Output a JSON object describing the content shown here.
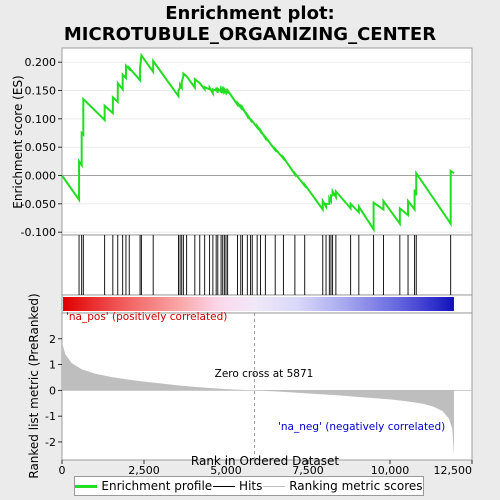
{
  "chart_data": {
    "type": "line",
    "title_lines": [
      "Enrichment plot:",
      "MICROTUBULE_ORGANIZING_CENTER"
    ],
    "xlabel": "Rank in Ordered Dataset",
    "ylabel_top": "Enrichment score (ES)",
    "ylabel_bottom": "Ranked list metric (PreRanked)",
    "xlim": [
      0,
      12500
    ],
    "x_ticks": [
      0,
      2500,
      5000,
      7500,
      10000,
      12500
    ],
    "x_tick_labels": [
      "0",
      "2,500",
      "5,000",
      "7,500",
      "10,000",
      "12,500"
    ],
    "es_ylim": [
      -0.105,
      0.225
    ],
    "es_ticks": [
      -0.1,
      -0.05,
      0.0,
      0.05,
      0.1,
      0.15,
      0.2
    ],
    "es_tick_labels": [
      "-0.100",
      "-0.050",
      "0.000",
      "0.050",
      "0.100",
      "0.150",
      "0.200"
    ],
    "metric_ylim": [
      -2.7,
      3.0
    ],
    "metric_ticks": [
      -2,
      -1,
      0,
      1,
      2
    ],
    "metric_tick_labels": [
      "-2",
      "-1",
      "0",
      "1",
      "2"
    ],
    "n_genes": 11950,
    "zero_cross": 5871,
    "zero_cross_label": "Zero cross at 5871",
    "pos_label": "'na_pos' (positively correlated)",
    "neg_label": "'na_neg' (negatively correlated)",
    "hits": [
      520,
      600,
      650,
      1300,
      1550,
      1700,
      1850,
      1950,
      2050,
      2380,
      2420,
      2780,
      3550,
      3600,
      3650,
      3700,
      3800,
      4050,
      4200,
      4350,
      4500,
      4600,
      4700,
      4750,
      4850,
      4900,
      4950,
      5000,
      5050,
      5350,
      5450,
      5500,
      5650,
      5750,
      5800,
      5950,
      6050,
      6200,
      6500,
      6750,
      7100,
      7400,
      7950,
      8050,
      8150,
      8200,
      8250,
      8350,
      8800,
      9050,
      9500,
      9800,
      10300,
      10550,
      10750,
      10800,
      11850
    ],
    "es_profile": {
      "x": [
        0,
        520,
        520,
        600,
        600,
        650,
        650,
        1300,
        1300,
        1550,
        1550,
        1700,
        1700,
        1850,
        1850,
        1950,
        1950,
        2050,
        2050,
        2380,
        2380,
        2420,
        2420,
        2780,
        2780,
        3550,
        3550,
        3600,
        3600,
        3650,
        3650,
        3700,
        3700,
        3800,
        3800,
        4050,
        4050,
        4200,
        4200,
        4350,
        4350,
        4500,
        4500,
        4600,
        4600,
        4700,
        4700,
        4750,
        4750,
        4850,
        4850,
        4900,
        4900,
        4950,
        4950,
        5000,
        5000,
        5050,
        5050,
        5350,
        5350,
        5450,
        5450,
        5500,
        5500,
        5650,
        5650,
        5750,
        5750,
        5800,
        5800,
        5950,
        5950,
        6050,
        6050,
        6200,
        6200,
        6500,
        6500,
        6750,
        6750,
        7100,
        7100,
        7400,
        7400,
        7950,
        7950,
        8050,
        8050,
        8150,
        8150,
        8200,
        8200,
        8250,
        8250,
        8350,
        8350,
        8800,
        8800,
        9050,
        9050,
        9500,
        9500,
        9800,
        9800,
        10300,
        10300,
        10550,
        10550,
        10750,
        10750,
        10800,
        10800,
        11850,
        11850,
        11950
      ],
      "y": [
        0.0,
        -0.043,
        0.025,
        0.018,
        0.075,
        0.072,
        0.135,
        0.098,
        0.123,
        0.11,
        0.138,
        0.13,
        0.163,
        0.152,
        0.178,
        0.172,
        0.194,
        0.188,
        0.19,
        0.168,
        0.19,
        0.212,
        0.212,
        0.183,
        0.202,
        0.14,
        0.15,
        0.155,
        0.16,
        0.155,
        0.165,
        0.175,
        0.18,
        0.175,
        0.175,
        0.155,
        0.17,
        0.163,
        0.163,
        0.152,
        0.156,
        0.152,
        0.155,
        0.145,
        0.152,
        0.15,
        0.155,
        0.146,
        0.153,
        0.148,
        0.153,
        0.148,
        0.153,
        0.148,
        0.152,
        0.147,
        0.152,
        0.145,
        0.15,
        0.125,
        0.128,
        0.12,
        0.122,
        0.118,
        0.12,
        0.105,
        0.107,
        0.098,
        0.1,
        0.094,
        0.096,
        0.085,
        0.087,
        0.078,
        0.08,
        0.066,
        0.068,
        0.045,
        0.047,
        0.03,
        0.032,
        0.002,
        0.004,
        -0.018,
        -0.016,
        -0.06,
        -0.045,
        -0.055,
        -0.05,
        -0.05,
        -0.04,
        -0.045,
        -0.035,
        -0.035,
        -0.028,
        -0.038,
        -0.028,
        -0.058,
        -0.05,
        -0.065,
        -0.055,
        -0.095,
        -0.048,
        -0.06,
        -0.045,
        -0.085,
        -0.058,
        -0.07,
        -0.045,
        -0.06,
        -0.025,
        -0.035,
        0.004,
        -0.085,
        0.008,
        0.004
      ]
    },
    "metric": {
      "x": [
        0,
        100,
        300,
        600,
        1000,
        1500,
        2000,
        2500,
        3000,
        3500,
        4000,
        4500,
        5000,
        5500,
        5871,
        6500,
        7000,
        7500,
        8000,
        8500,
        9000,
        9500,
        10000,
        10500,
        11000,
        11300,
        11600,
        11800,
        11900,
        11950
      ],
      "y": [
        1.85,
        1.4,
        1.05,
        0.82,
        0.65,
        0.52,
        0.42,
        0.34,
        0.27,
        0.2,
        0.14,
        0.09,
        0.05,
        0.02,
        0.0,
        -0.04,
        -0.08,
        -0.12,
        -0.16,
        -0.2,
        -0.25,
        -0.3,
        -0.35,
        -0.42,
        -0.52,
        -0.62,
        -0.8,
        -1.1,
        -1.5,
        -2.55
      ]
    },
    "colors": {
      "es_line": "#22dd22",
      "hit_line": "#000000",
      "metric_fill": "#bebebe",
      "zero_line": "#888888",
      "pos_text": "#cc0000",
      "neg_text": "#0000cc",
      "panel_bg": "#ffffff",
      "figure_bg": "#ebebeb"
    }
  },
  "legend": {
    "items": [
      {
        "label": "Enrichment profile",
        "color": "#22dd22"
      },
      {
        "label": "Hits",
        "color": "#000000"
      },
      {
        "label": "Ranking metric scores",
        "color": "#bebebe"
      }
    ]
  }
}
